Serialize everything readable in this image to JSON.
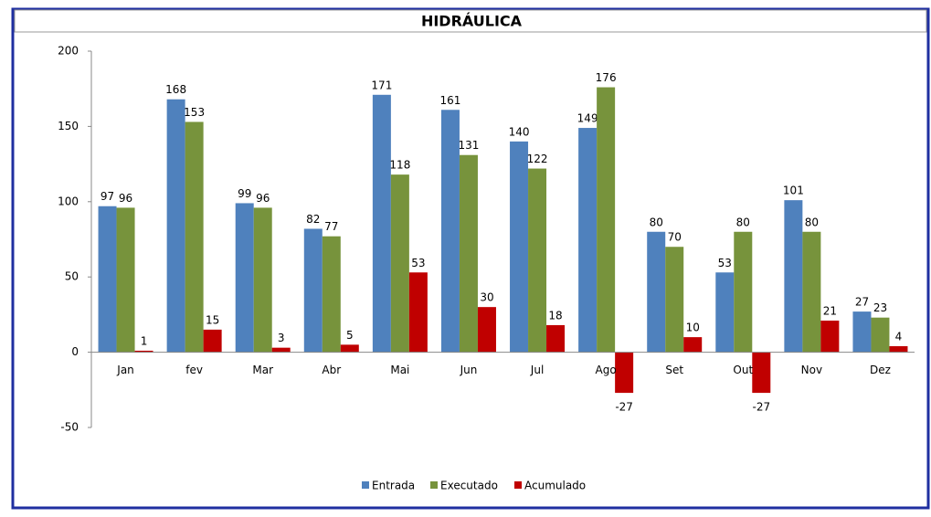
{
  "chart_data": {
    "type": "bar",
    "title": "HIDRÁULICA",
    "categories": [
      "Jan",
      "fev",
      "Mar",
      "Abr",
      "Mai",
      "Jun",
      "Jul",
      "Ago",
      "Set",
      "Out",
      "Nov",
      "Dez"
    ],
    "series": [
      {
        "name": "Entrada",
        "color": "#4f81bd",
        "values": [
          97,
          168,
          99,
          82,
          171,
          161,
          140,
          149,
          80,
          53,
          101,
          27
        ]
      },
      {
        "name": "Executado",
        "color": "#77933c",
        "values": [
          96,
          153,
          96,
          77,
          118,
          131,
          122,
          176,
          70,
          80,
          80,
          23
        ]
      },
      {
        "name": "Acumulado",
        "color": "#c00000",
        "values": [
          1,
          15,
          3,
          5,
          53,
          30,
          18,
          -27,
          10,
          -27,
          21,
          4
        ]
      }
    ],
    "ylim": [
      -50,
      200
    ],
    "yticks": [
      -50,
      0,
      50,
      100,
      150,
      200
    ],
    "grid": false,
    "legend": "bottom"
  }
}
